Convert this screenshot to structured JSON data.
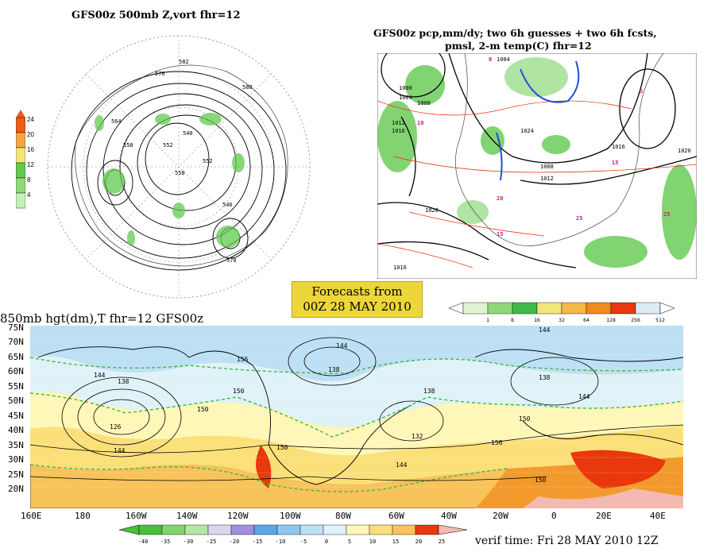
{
  "panels": {
    "top_left": {
      "title": "GFS00z   500mb Z,vort     fhr=12",
      "colorbar_labels": [
        "24",
        "20",
        "16",
        "12",
        "8",
        "4"
      ],
      "colorbar_colors": [
        "#e85d18",
        "#f4a640",
        "#f2e57c",
        "#63c94f",
        "#8fd97a",
        "#c5efb7"
      ],
      "contours": [
        "582",
        "576",
        "564",
        "558",
        "552",
        "546",
        "540",
        "570",
        "588",
        "558",
        "552"
      ]
    },
    "top_right": {
      "title_line1": "GFS00z pcp,mm/dy; two 6h guesses + two 6h fcsts,",
      "title_line2": "pmsl, 2-m temp(C)  fhr=12",
      "isobars": [
        "1000",
        "1004",
        "1008",
        "1012",
        "1016",
        "1020",
        "1024",
        "1008",
        "1012",
        "1016",
        "1020",
        "1004",
        "1016"
      ],
      "temps": [
        "10",
        "15",
        "5",
        "0",
        "20",
        "25",
        "25",
        "15"
      ]
    },
    "bottom": {
      "title": "850mb hgt(dm),T  fhr=12 GFS00z",
      "lat_labels": [
        "75N",
        "70N",
        "65N",
        "60N",
        "55N",
        "50N",
        "45N",
        "40N",
        "35N",
        "30N",
        "25N",
        "20N"
      ],
      "lon_labels": [
        "160E",
        "180",
        "160W",
        "140W",
        "120W",
        "100W",
        "80W",
        "60W",
        "40W",
        "20W",
        "0",
        "20E",
        "40E"
      ],
      "contours": [
        "144",
        "138",
        "126",
        "144",
        "150",
        "156",
        "138",
        "144",
        "150",
        "138",
        "132",
        "144",
        "138",
        "144",
        "150",
        "156",
        "150",
        "150",
        "144"
      ]
    }
  },
  "forecast_box": {
    "line1": "Forecasts from",
    "line2": "00Z 28 MAY 2010"
  },
  "precip_colorbar": {
    "labels": [
      "1",
      "8",
      "16",
      "32",
      "64",
      "128",
      "256",
      "512"
    ],
    "colors": [
      "#dff3d5",
      "#8fd97a",
      "#3fb84a",
      "#f2e57c",
      "#f4b846",
      "#f08a1a",
      "#e8380c",
      "#dcecf6"
    ]
  },
  "temp_colorbar": {
    "labels": [
      "-40",
      "-35",
      "-30",
      "-25",
      "-20",
      "-15",
      "-10",
      "-5",
      "0",
      "5",
      "10",
      "15",
      "20",
      "25"
    ],
    "colors": [
      "#47c13a",
      "#82d46e",
      "#b6e6a6",
      "#d9d6f0",
      "#9f91dc",
      "#5ba6e6",
      "#8ec7ee",
      "#bde0f5",
      "#dff2f8",
      "#fff7b8",
      "#fbe07a",
      "#f7c35a",
      "#f29a2e",
      "#e8380c",
      "#f4b9b0"
    ]
  },
  "verif_time": "verif time: Fri 28 MAY 2010 12Z",
  "colors": {
    "land_warm": "#f4b846",
    "sea_cool": "#bde0f5",
    "contour": "#000000",
    "dashed_green": "#3fb84a",
    "isotherm_red": "#e8380c"
  }
}
